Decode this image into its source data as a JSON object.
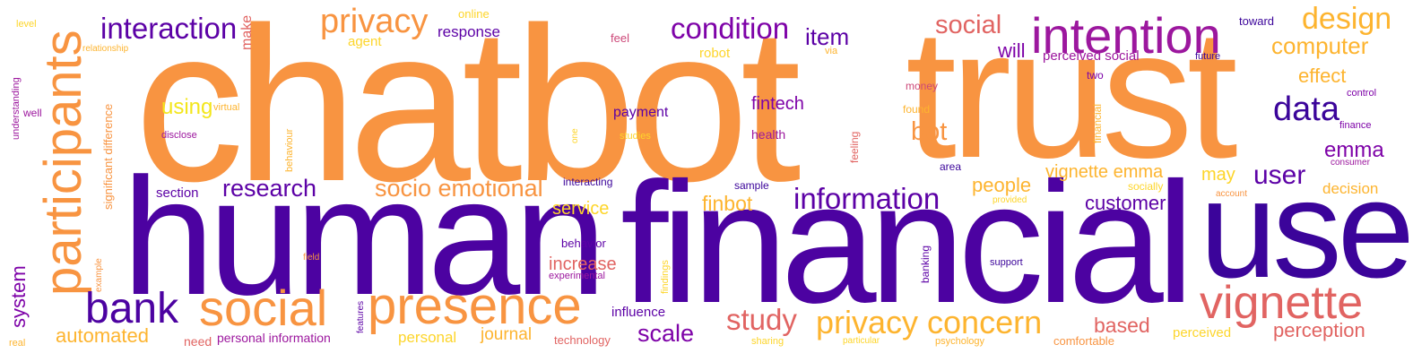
{
  "words": [
    {
      "text": "chatbot",
      "color": "#f89441"
    },
    {
      "text": "trust",
      "color": "#f89441"
    },
    {
      "text": "human",
      "color": "#4c02a1"
    },
    {
      "text": "financial",
      "color": "#4c02a1"
    },
    {
      "text": "use",
      "color": "#3b049a"
    },
    {
      "text": "participants",
      "color": "#f89441"
    },
    {
      "text": "intention",
      "color": "#9c179e"
    },
    {
      "text": "presence",
      "color": "#f89441"
    },
    {
      "text": "social",
      "color": "#f89441"
    },
    {
      "text": "vignette",
      "color": "#e16462"
    },
    {
      "text": "bank",
      "color": "#4c02a1"
    },
    {
      "text": "privacy concern",
      "color": "#fdb42f"
    },
    {
      "text": "privacy",
      "color": "#f89441"
    },
    {
      "text": "condition",
      "color": "#7e03a8"
    },
    {
      "text": "interaction",
      "color": "#5c01a6"
    },
    {
      "text": "design",
      "color": "#fdb42f"
    },
    {
      "text": "data",
      "color": "#3b049a"
    },
    {
      "text": "information",
      "color": "#5c01a6"
    },
    {
      "text": "study",
      "color": "#e16462"
    },
    {
      "text": "social",
      "color": "#e16462"
    },
    {
      "text": "research",
      "color": "#5c01a6"
    },
    {
      "text": "socio emotional",
      "color": "#f89441"
    },
    {
      "text": "item",
      "color": "#5c01a6"
    },
    {
      "text": "computer",
      "color": "#fdb42f"
    },
    {
      "text": "bot",
      "color": "#f89441"
    },
    {
      "text": "user",
      "color": "#5c01a6"
    },
    {
      "text": "perception",
      "color": "#e16462"
    },
    {
      "text": "scale",
      "color": "#7e03a8"
    },
    {
      "text": "automated",
      "color": "#fdb42f"
    },
    {
      "text": "customer",
      "color": "#5c01a6"
    },
    {
      "text": "people",
      "color": "#fdb42f"
    },
    {
      "text": "vignette emma",
      "color": "#fdb42f"
    },
    {
      "text": "emma",
      "color": "#7e03a8"
    },
    {
      "text": "based",
      "color": "#e16462"
    },
    {
      "text": "effect",
      "color": "#fdb42f"
    },
    {
      "text": "increase",
      "color": "#e16462"
    },
    {
      "text": "finbot",
      "color": "#fdb42f"
    },
    {
      "text": "using",
      "color": "#f3e61c"
    },
    {
      "text": "fintech",
      "color": "#7e03a8"
    },
    {
      "text": "will",
      "color": "#7e03a8"
    },
    {
      "text": "system",
      "color": "#7e03a8"
    },
    {
      "text": "service",
      "color": "#fdd52a"
    },
    {
      "text": "may",
      "color": "#fdd52a"
    },
    {
      "text": "decision",
      "color": "#fdb42f"
    },
    {
      "text": "journal",
      "color": "#fdb42f"
    },
    {
      "text": "personal",
      "color": "#fdd52a"
    },
    {
      "text": "payment",
      "color": "#5c01a6"
    },
    {
      "text": "response",
      "color": "#5c01a6"
    },
    {
      "text": "perceived social",
      "color": "#9c179e"
    },
    {
      "text": "section",
      "color": "#5c01a6"
    },
    {
      "text": "influence",
      "color": "#5c01a6"
    },
    {
      "text": "agent",
      "color": "#fdd52a"
    },
    {
      "text": "perceived",
      "color": "#fdd52a"
    },
    {
      "text": "robot",
      "color": "#fdd52a"
    },
    {
      "text": "online",
      "color": "#fdd52a"
    },
    {
      "text": "make",
      "color": "#e16462"
    },
    {
      "text": "health",
      "color": "#9c179e"
    },
    {
      "text": "behavior",
      "color": "#5c01a6"
    },
    {
      "text": "toward",
      "color": "#3b049a"
    },
    {
      "text": "personal information",
      "color": "#9c179e"
    },
    {
      "text": "need",
      "color": "#e16462"
    },
    {
      "text": "technology",
      "color": "#e16462"
    },
    {
      "text": "comfortable",
      "color": "#f89441"
    },
    {
      "text": "feel",
      "color": "#cc4778"
    },
    {
      "text": "money",
      "color": "#cc4778"
    },
    {
      "text": "two",
      "color": "#7e03a8"
    },
    {
      "text": "found",
      "color": "#fdb42f"
    },
    {
      "text": "sample",
      "color": "#3b049a"
    },
    {
      "text": "area",
      "color": "#3b049a"
    },
    {
      "text": "interacting",
      "color": "#3b049a"
    },
    {
      "text": "socially",
      "color": "#fdd52a"
    },
    {
      "text": "future",
      "color": "#3b049a"
    },
    {
      "text": "control",
      "color": "#7e03a8"
    },
    {
      "text": "finance",
      "color": "#7e03a8"
    },
    {
      "text": "consumer",
      "color": "#9c179e"
    },
    {
      "text": "account",
      "color": "#f89441"
    },
    {
      "text": "provided",
      "color": "#fdd52a"
    },
    {
      "text": "support",
      "color": "#3b049a"
    },
    {
      "text": "sharing",
      "color": "#fdd52a"
    },
    {
      "text": "particular",
      "color": "#fdd52a"
    },
    {
      "text": "psychology",
      "color": "#fdb42f"
    },
    {
      "text": "experimental",
      "color": "#9c179e"
    },
    {
      "text": "disclose",
      "color": "#9c179e"
    },
    {
      "text": "virtual",
      "color": "#fdb42f"
    },
    {
      "text": "studies",
      "color": "#fdd52a"
    },
    {
      "text": "well",
      "color": "#9c179e"
    },
    {
      "text": "level",
      "color": "#fdd52a"
    },
    {
      "text": "relationship",
      "color": "#fdb42f"
    },
    {
      "text": "real",
      "color": "#fdb42f"
    },
    {
      "text": "field",
      "color": "#f89441"
    },
    {
      "text": "via",
      "color": "#fdb42f"
    },
    {
      "text": "significant difference",
      "color": "#f89441"
    },
    {
      "text": "understanding",
      "color": "#9c179e"
    },
    {
      "text": "behaviour",
      "color": "#fdb42f"
    },
    {
      "text": "example",
      "color": "#f89441"
    },
    {
      "text": "feeling",
      "color": "#e16462"
    },
    {
      "text": "financial",
      "color": "#fdb42f"
    },
    {
      "text": "banking",
      "color": "#5c01a6"
    },
    {
      "text": "findings",
      "color": "#fdd52a"
    },
    {
      "text": "one",
      "color": "#fdd52a"
    },
    {
      "text": "features",
      "color": "#5c01a6"
    }
  ]
}
